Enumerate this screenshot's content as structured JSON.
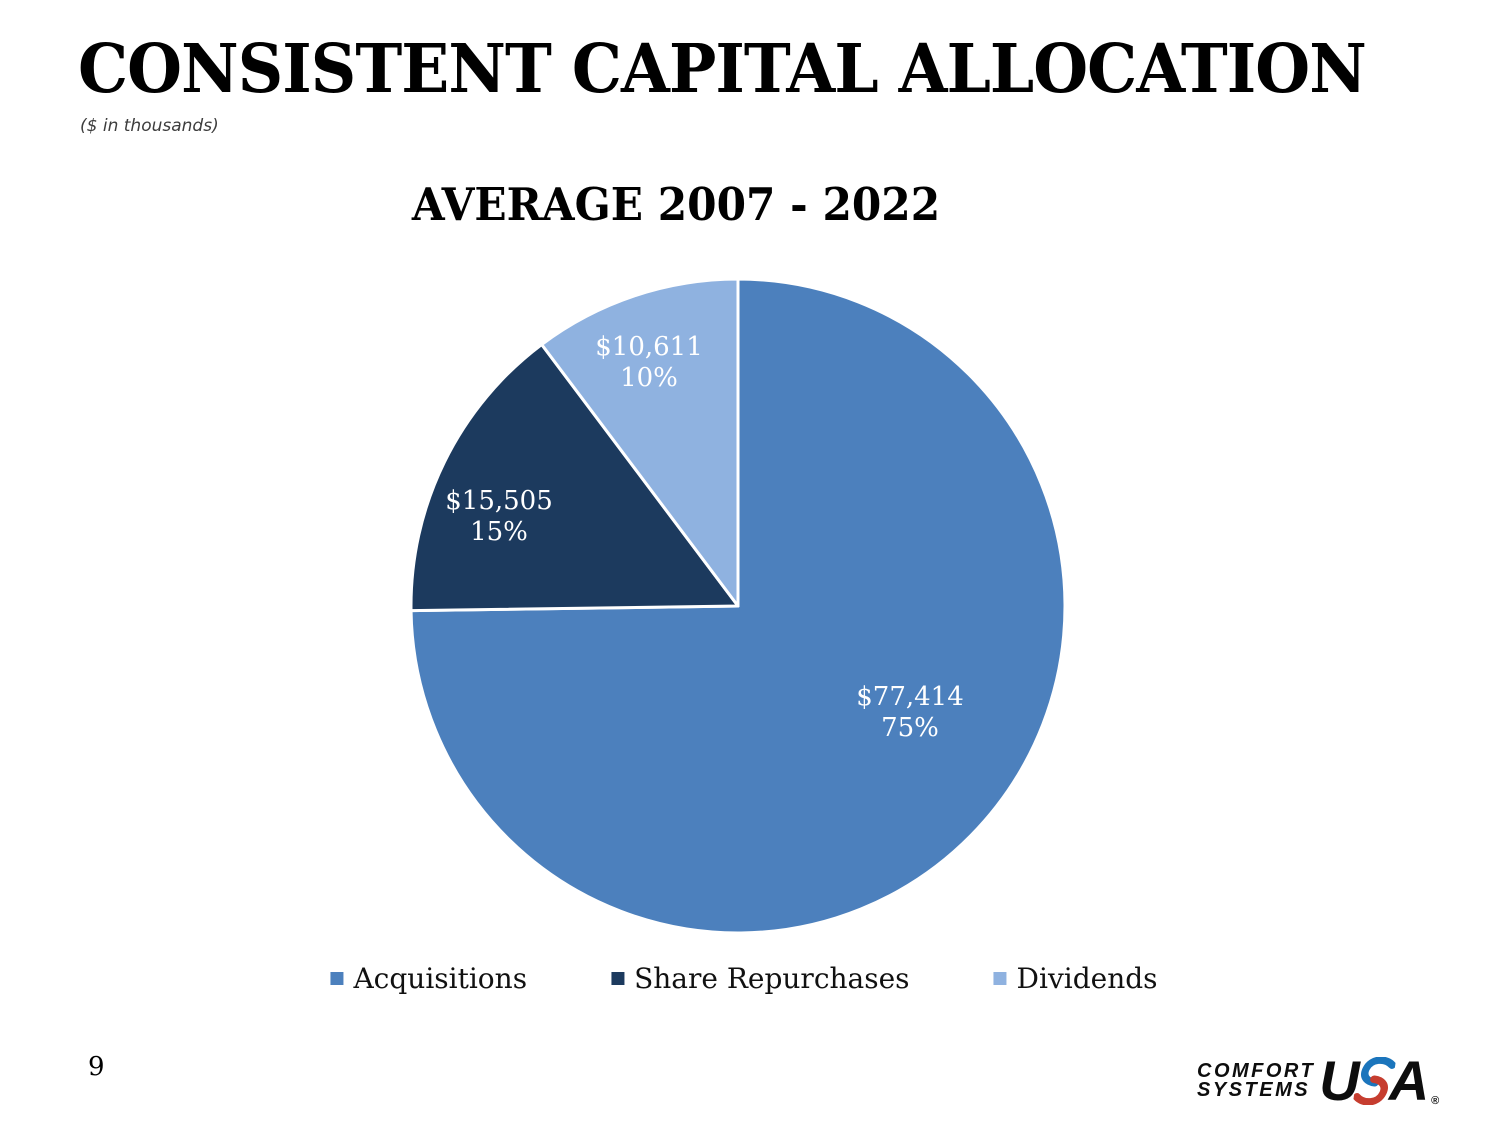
{
  "slide": {
    "title": "CONSISTENT CAPITAL ALLOCATION",
    "subtitle": "($ in thousands)",
    "page_number": "9"
  },
  "chart_data": {
    "type": "pie",
    "title": "AVERAGE 2007 - 2022",
    "start_angle_deg": 0,
    "direction": "clockwise",
    "legend_position": "bottom",
    "label_text_color": "#ffffff",
    "slice_border_color": "#ffffff",
    "slices": [
      {
        "label": "Acquisitions",
        "value": 77414,
        "amount_label": "$77,414",
        "pct": 75,
        "pct_label": "75%",
        "color": "#4c80bd"
      },
      {
        "label": "Share Repurchases",
        "value": 15505,
        "amount_label": "$15,505",
        "pct": 15,
        "pct_label": "15%",
        "color": "#1c3a5e"
      },
      {
        "label": "Dividends",
        "value": 10611,
        "amount_label": "$10,611",
        "pct": 10,
        "pct_label": "10%",
        "color": "#8fb2e0"
      }
    ]
  },
  "logo": {
    "line1": "COMFORT",
    "line2": "SYSTEMS",
    "usa_u": "U",
    "usa_a": "A",
    "registered": "®",
    "swoosh_blue": "#1b75bc",
    "swoosh_red": "#c63d2f"
  }
}
